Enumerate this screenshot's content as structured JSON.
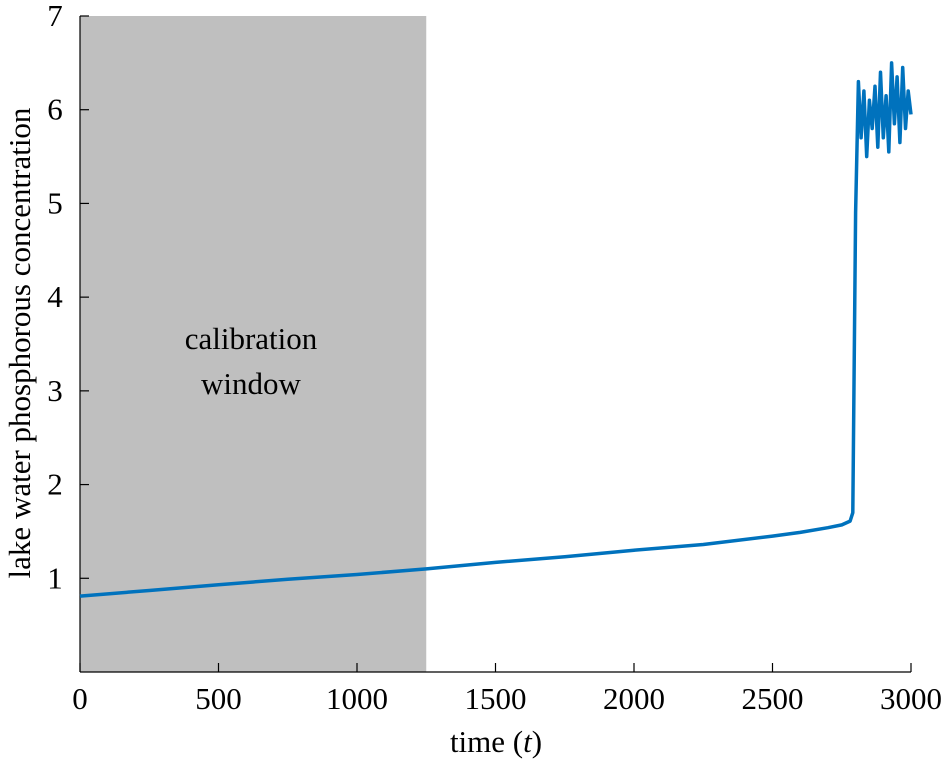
{
  "chart_data": {
    "type": "line",
    "xlabel_prefix": "time (",
    "xlabel_var": "t",
    "xlabel_suffix": ")",
    "ylabel": "lake water phosphorous concentration",
    "xlim": [
      0,
      3000
    ],
    "ylim": [
      0,
      7
    ],
    "x_ticks": [
      0,
      500,
      1000,
      1500,
      2000,
      2500,
      3000
    ],
    "y_ticks": [
      1,
      2,
      3,
      4,
      5,
      6,
      7
    ],
    "grid": false,
    "legend": "none",
    "shaded_region": {
      "x_range": [
        0,
        1250
      ],
      "label_line1": "calibration",
      "label_line2": "window",
      "color": "#bfbfbf"
    },
    "series": [
      {
        "color": "#0072bd",
        "x": [
          0,
          250,
          500,
          750,
          1000,
          1250,
          1500,
          1750,
          2000,
          2250,
          2500,
          2600,
          2700,
          2750,
          2780,
          2790,
          2800,
          2810,
          2820,
          2830,
          2840,
          2850,
          2860,
          2870,
          2880,
          2890,
          2900,
          2910,
          2920,
          2930,
          2940,
          2950,
          2960,
          2970,
          2980,
          2990,
          3000
        ],
        "y": [
          0.81,
          0.87,
          0.93,
          0.99,
          1.04,
          1.1,
          1.17,
          1.23,
          1.3,
          1.36,
          1.45,
          1.49,
          1.54,
          1.57,
          1.61,
          1.7,
          4.9,
          6.3,
          5.7,
          6.2,
          5.5,
          6.1,
          5.8,
          6.25,
          5.6,
          6.4,
          5.7,
          6.15,
          5.55,
          6.5,
          5.85,
          6.35,
          5.65,
          6.45,
          5.8,
          6.2,
          5.95
        ]
      }
    ]
  }
}
